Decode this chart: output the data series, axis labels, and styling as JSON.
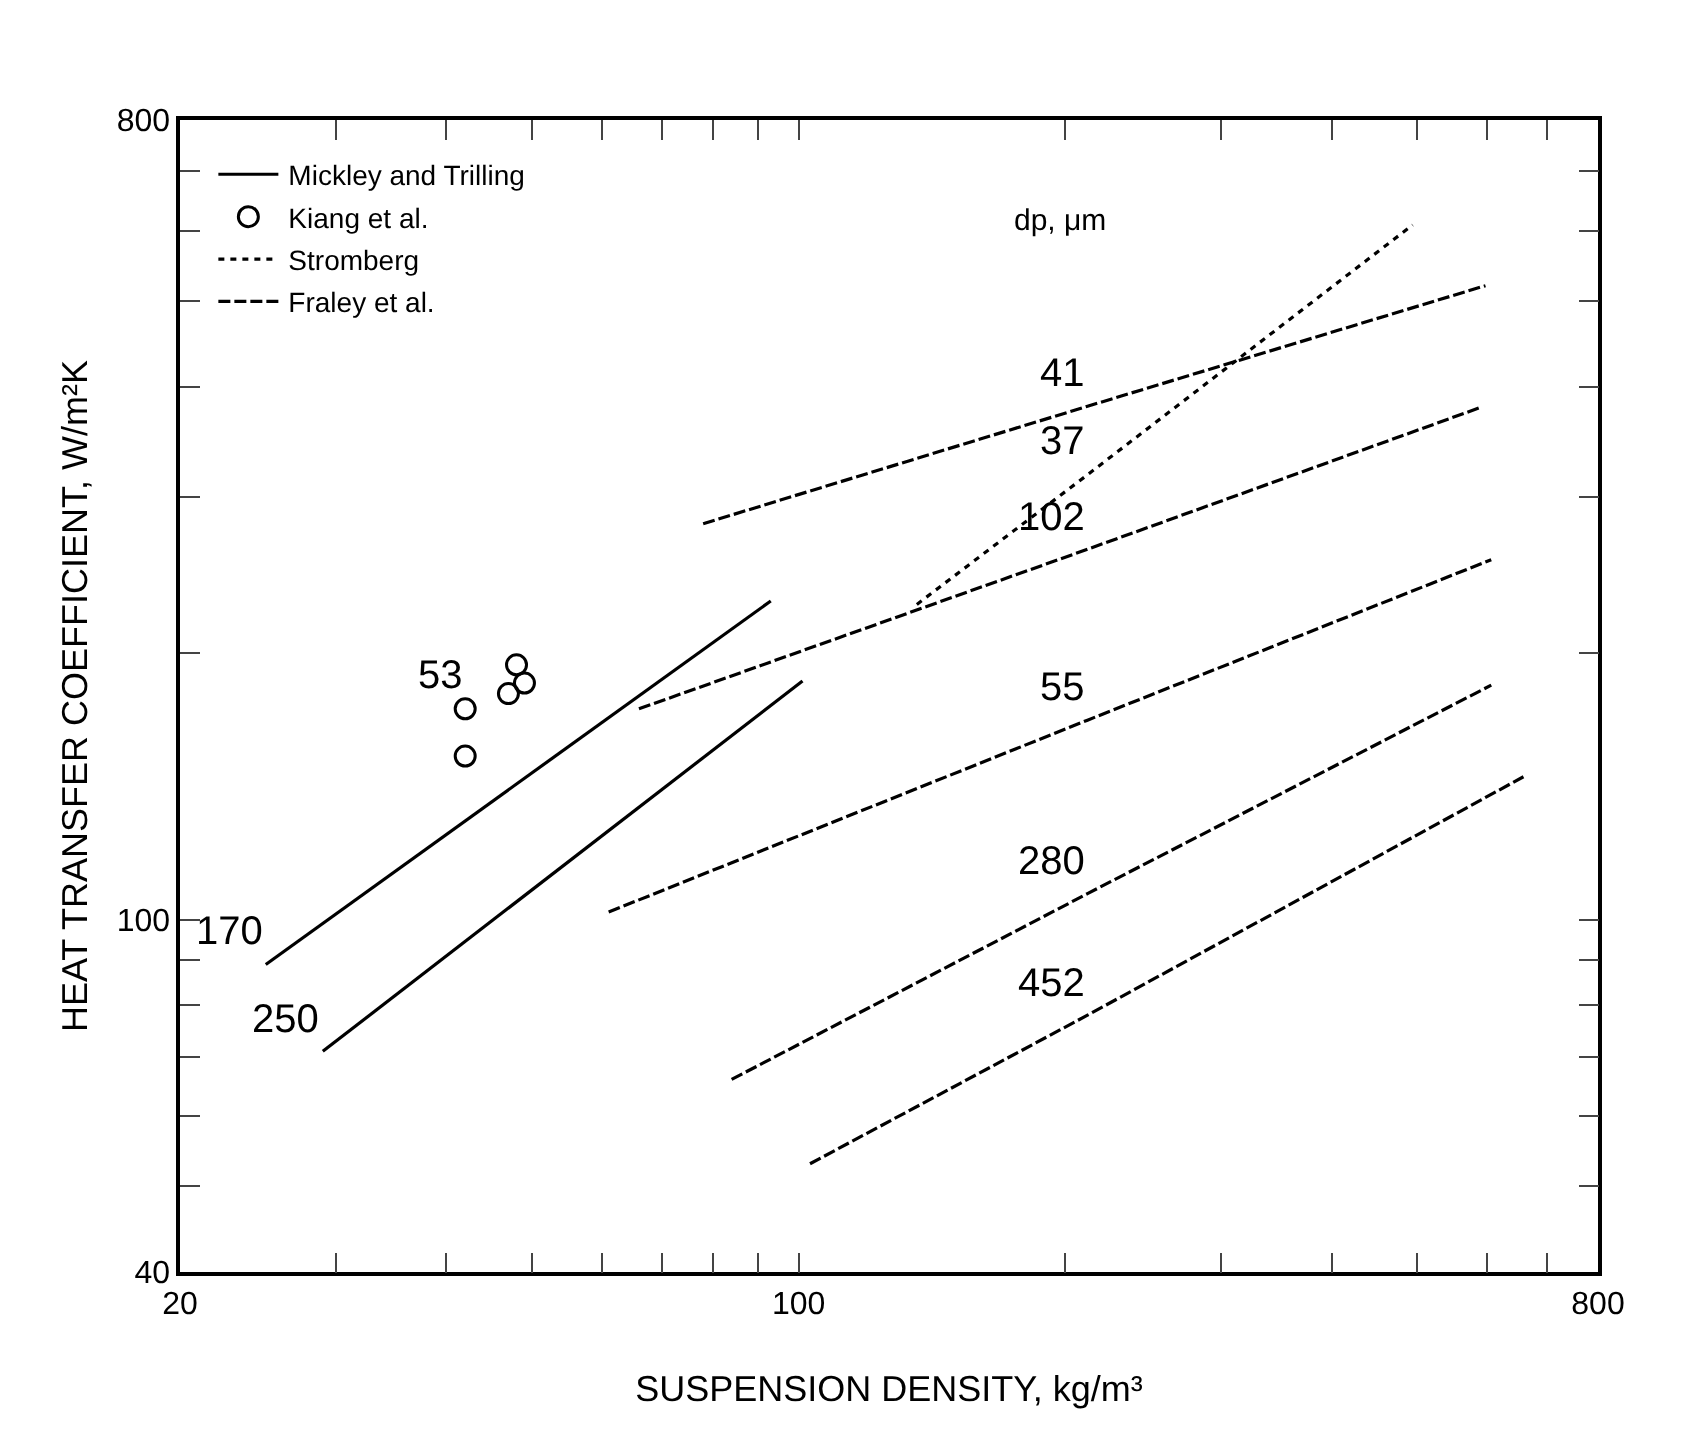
{
  "chart_data": {
    "type": "line",
    "xlabel": "SUSPENSION DENSITY, kg/m³",
    "ylabel": "HEAT TRANSFER COEFFICIENT, W/m²K",
    "log": "xy",
    "grid": false,
    "legend": "top left",
    "legend_title": "dp, μm",
    "xlim": [
      20,
      800
    ],
    "ylim": [
      40,
      800
    ],
    "xticks": [
      20,
      {
        "value": 30,
        "label": null
      },
      {
        "value": 40,
        "label": null
      },
      {
        "value": 50,
        "label": null
      },
      {
        "value": 60,
        "label": null
      },
      {
        "value": 70,
        "label": null
      },
      {
        "value": 80,
        "label": null
      },
      {
        "value": 90,
        "label": null
      },
      100,
      {
        "value": 200,
        "label": null
      },
      {
        "value": 300,
        "label": null
      },
      {
        "value": 400,
        "label": null
      },
      {
        "value": 500,
        "label": null
      },
      {
        "value": 600,
        "label": null
      },
      {
        "value": 700,
        "label": null
      },
      800
    ],
    "yticks": [
      40,
      {
        "value": 50,
        "label": null
      },
      {
        "value": 60,
        "label": null
      },
      {
        "value": 70,
        "label": null
      },
      {
        "value": 80,
        "label": null
      },
      {
        "value": 90,
        "label": null
      },
      100,
      {
        "value": 200,
        "label": null
      },
      {
        "value": 300,
        "label": null
      },
      {
        "value": 400,
        "label": null
      },
      {
        "value": 500,
        "label": null
      },
      {
        "value": 600,
        "label": null
      },
      {
        "value": 700,
        "label": null
      },
      800
    ],
    "series": [
      {
        "name": "Mickley and Trilling",
        "type": "line",
        "line_style": "solid",
        "color": "#000000",
        "x": [
          25,
          93
        ],
        "values": [
          89,
          229
        ]
      },
      {
        "type": "line",
        "line_style": "solid",
        "color": "#000000",
        "x": [
          29,
          101
        ],
        "values": [
          71,
          186
        ]
      },
      {
        "name": "Kiang et al.",
        "type": "scatter",
        "marker": "circle",
        "color": "#000000",
        "x": [
          42,
          42,
          47,
          48,
          49
        ],
        "values": [
          173,
          153,
          180,
          194,
          185
        ]
      },
      {
        "name": "Stromberg",
        "type": "line",
        "line_style": "dotted",
        "color": "#000000",
        "x": [
          136,
          212,
          494
        ],
        "values": [
          227,
          318,
          609
        ]
      },
      {
        "name": "Fraley et al.",
        "type": "line",
        "line_style": "dashed",
        "color": "#000000",
        "x": [
          78,
          212,
          597
        ],
        "values": [
          280,
          380,
          520
        ]
      },
      {
        "type": "line",
        "line_style": "dashed",
        "color": "#000000",
        "x": [
          66,
          212,
          590
        ],
        "values": [
          173,
          262,
          379
        ]
      },
      {
        "type": "line",
        "line_style": "dashed",
        "color": "#000000",
        "x": [
          61,
          212,
          606
        ],
        "values": [
          102,
          168,
          255
        ]
      },
      {
        "type": "line",
        "line_style": "dashed",
        "color": "#000000",
        "x": [
          84,
          212,
          606
        ],
        "values": [
          66,
          107,
          184
        ]
      },
      {
        "type": "line",
        "line_style": "dashed",
        "color": "#000000",
        "x": [
          103,
          212,
          659
        ],
        "values": [
          53,
          78,
          145
        ]
      }
    ],
    "annotations": [
      {
        "text": "41",
        "x": 212,
        "y": 380
      },
      {
        "text": "37",
        "x": 212,
        "y": 318
      },
      {
        "text": "102",
        "x": 212,
        "y": 262
      },
      {
        "text": "55",
        "x": 212,
        "y": 168
      },
      {
        "text": "280",
        "x": 212,
        "y": 107
      },
      {
        "text": "452",
        "x": 212,
        "y": 78
      },
      {
        "text": "53",
        "x": 42,
        "y": 173
      },
      {
        "text": "170",
        "x": 25,
        "y": 89
      },
      {
        "text": "250",
        "x": 29,
        "y": 71
      }
    ]
  }
}
